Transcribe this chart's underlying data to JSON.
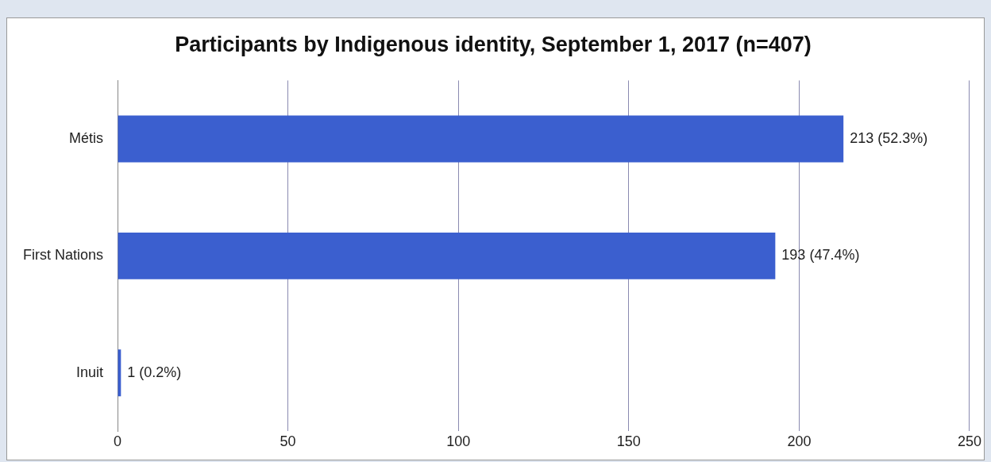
{
  "chart_data": {
    "type": "bar",
    "orientation": "horizontal",
    "title": "Participants by Indigenous identity, September 1, 2017 (n=407)",
    "categories": [
      "Métis",
      "First Nations",
      "Inuit"
    ],
    "series": [
      {
        "color": "#3b5fcf",
        "values": [
          213,
          193,
          1
        ],
        "value_labels": [
          "213 (52.3%)",
          "193 (47.4%)",
          "1 (0.2%)"
        ]
      }
    ],
    "xlim": [
      0,
      250
    ],
    "xticks": [
      0,
      50,
      100,
      150,
      200,
      250
    ],
    "grid": "x",
    "legend": false
  }
}
